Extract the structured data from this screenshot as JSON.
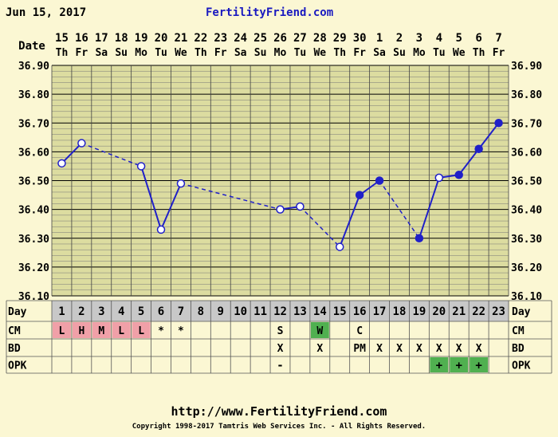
{
  "header": {
    "date": "Jun 15, 2017",
    "site": "FertilityFriend.com"
  },
  "footer": {
    "url": "http://www.FertilityFriend.com",
    "copyright": "Copyright 1998-2017 Tamtris Web Services Inc. - All Rights Reserved."
  },
  "colors": {
    "background": "#fbf7d3",
    "plot_background": "#dcdca0",
    "line": "#2020c8",
    "grid": "#000000",
    "day_row": "#c8c8c8",
    "cm_highlight": "#f0a0a8",
    "cm_green": "#50b050",
    "opk_positive": "#50b050"
  },
  "chart_data": {
    "type": "line",
    "title": "",
    "xlabel": "",
    "ylabel": "",
    "row_labels": {
      "date": "Date",
      "day": "Day",
      "cm": "CM",
      "bd": "BD",
      "opk": "OPK"
    },
    "ylim": [
      36.1,
      36.9
    ],
    "yticks": [
      "36.10",
      "36.20",
      "36.30",
      "36.40",
      "36.50",
      "36.60",
      "36.70",
      "36.80",
      "36.90"
    ],
    "grid": true,
    "dates": [
      "15",
      "16",
      "17",
      "18",
      "19",
      "20",
      "21",
      "22",
      "23",
      "24",
      "25",
      "26",
      "27",
      "28",
      "29",
      "30",
      "1",
      "2",
      "3",
      "4",
      "5",
      "6",
      "7"
    ],
    "weekdays": [
      "Th",
      "Fr",
      "Sa",
      "Su",
      "Mo",
      "Tu",
      "We",
      "Th",
      "Fr",
      "Sa",
      "Su",
      "Mo",
      "Tu",
      "We",
      "Th",
      "Fr",
      "Sa",
      "Su",
      "Mo",
      "Tu",
      "We",
      "Th",
      "Fr"
    ],
    "days": [
      "1",
      "2",
      "3",
      "4",
      "5",
      "6",
      "7",
      "8",
      "9",
      "10",
      "11",
      "12",
      "13",
      "14",
      "15",
      "16",
      "17",
      "18",
      "19",
      "20",
      "21",
      "22",
      "23"
    ],
    "temperatures": [
      36.56,
      36.63,
      null,
      null,
      36.55,
      36.33,
      36.49,
      null,
      null,
      null,
      null,
      36.4,
      36.41,
      null,
      36.27,
      36.45,
      36.5,
      null,
      36.3,
      36.51,
      36.52,
      36.61,
      36.7
    ],
    "marker_style": [
      "open",
      "open",
      null,
      null,
      "open",
      "open",
      "open",
      null,
      null,
      null,
      null,
      "open",
      "open",
      null,
      "open",
      "filled",
      "filled",
      null,
      "filled",
      "open",
      "filled",
      "filled",
      "filled"
    ],
    "segments": [
      {
        "from": 0,
        "to": 1,
        "style": "solid"
      },
      {
        "from": 1,
        "to": 4,
        "style": "dashed"
      },
      {
        "from": 4,
        "to": 5,
        "style": "solid"
      },
      {
        "from": 5,
        "to": 6,
        "style": "solid"
      },
      {
        "from": 6,
        "to": 11,
        "style": "dashed"
      },
      {
        "from": 11,
        "to": 12,
        "style": "solid"
      },
      {
        "from": 12,
        "to": 14,
        "style": "dashed"
      },
      {
        "from": 14,
        "to": 15,
        "style": "solid"
      },
      {
        "from": 15,
        "to": 16,
        "style": "solid"
      },
      {
        "from": 16,
        "to": 18,
        "style": "dashed"
      },
      {
        "from": 18,
        "to": 19,
        "style": "solid"
      },
      {
        "from": 19,
        "to": 20,
        "style": "solid"
      },
      {
        "from": 20,
        "to": 21,
        "style": "solid"
      },
      {
        "from": 21,
        "to": 22,
        "style": "solid"
      }
    ],
    "cm": [
      "L",
      "H",
      "M",
      "L",
      "L",
      "*",
      "*",
      "",
      "",
      "",
      "",
      "S",
      "",
      "W",
      "",
      "C",
      "",
      "",
      "",
      "",
      "",
      "",
      ""
    ],
    "cm_highlight": [
      "pink",
      "pink",
      "pink",
      "pink",
      "pink",
      null,
      null,
      null,
      null,
      null,
      null,
      null,
      null,
      "green",
      null,
      null,
      null,
      null,
      null,
      null,
      null,
      null,
      null
    ],
    "bd": [
      "",
      "",
      "",
      "",
      "",
      "",
      "",
      "",
      "",
      "",
      "",
      "X",
      "",
      "X",
      "",
      "PM",
      "X",
      "X",
      "X",
      "X",
      "X",
      "X",
      ""
    ],
    "opk": [
      "",
      "",
      "",
      "",
      "",
      "",
      "",
      "",
      "",
      "",
      "",
      "-",
      "",
      "",
      "",
      "",
      "",
      "",
      "",
      "+",
      "+",
      "+",
      ""
    ],
    "opk_highlight": [
      null,
      null,
      null,
      null,
      null,
      null,
      null,
      null,
      null,
      null,
      null,
      null,
      null,
      null,
      null,
      null,
      null,
      null,
      null,
      "green",
      "green",
      "green",
      null
    ]
  }
}
